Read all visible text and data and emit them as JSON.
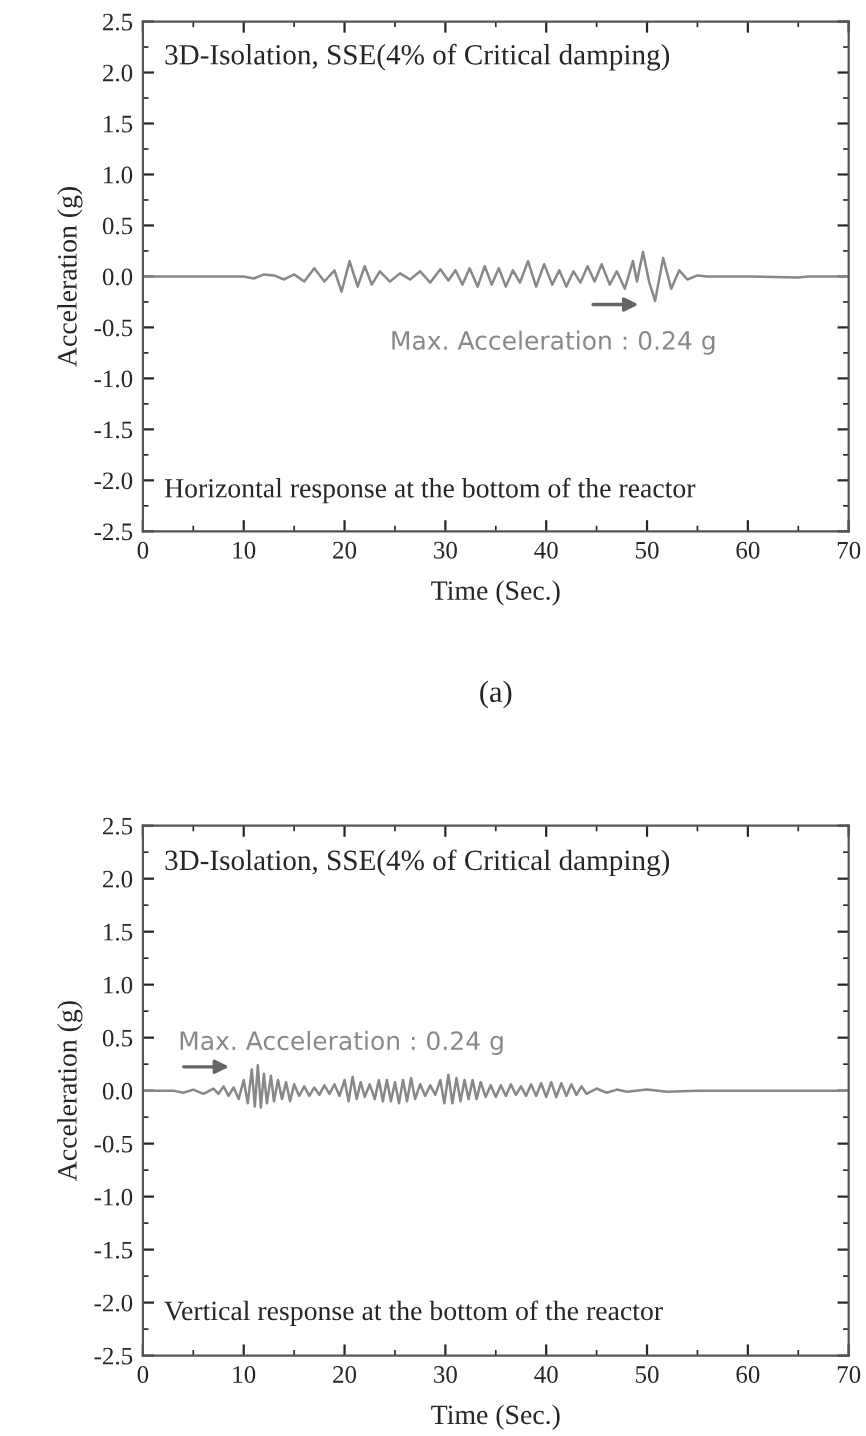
{
  "chart_data": [
    {
      "type": "line",
      "title": "3D-Isolation, SSE(4% of Critical damping)",
      "xlabel": "Time (Sec.)",
      "ylabel": "Acceleration (g)",
      "annotations": [
        "Max. Acceleration : 0.24 g",
        "Horizontal response at the bottom of the reactor",
        "(a)"
      ],
      "xlim": [
        0,
        70
      ],
      "ylim": [
        -2.5,
        2.5
      ],
      "xticks": [
        0,
        10,
        20,
        30,
        40,
        50,
        60,
        70
      ],
      "yticks": [
        {
          "value": -2.5,
          "label": "-2.5"
        },
        {
          "value": -2.0,
          "label": "-2.0"
        },
        {
          "value": -1.5,
          "label": "-1.5"
        },
        {
          "value": -1.0,
          "label": "-1.0"
        },
        {
          "value": -0.5,
          "label": "-0.5"
        },
        {
          "value": 0.0,
          "label": "0.0"
        },
        {
          "value": 0.5,
          "label": "0.5"
        },
        {
          "value": 1.0,
          "label": "1.0"
        },
        {
          "value": 1.5,
          "label": "1.5"
        },
        {
          "value": 2.0,
          "label": "2.0"
        },
        {
          "value": 2.5,
          "label": "2.5"
        }
      ],
      "marker": "none",
      "line_style": "solid",
      "series": [
        {
          "color": "#888888",
          "x": [
            0,
            5,
            10,
            11,
            12,
            13,
            14,
            15,
            16,
            17,
            18,
            19,
            19.7,
            20.5,
            21.3,
            22,
            22.7,
            23.5,
            24.5,
            25.5,
            26.5,
            27.5,
            28.5,
            29.5,
            30.3,
            31,
            31.7,
            32.4,
            33.2,
            33.9,
            34.6,
            35.3,
            36,
            36.7,
            37.4,
            38.2,
            39,
            39.8,
            40.6,
            41.3,
            42,
            42.7,
            43.4,
            44.1,
            44.8,
            45.5,
            46.3,
            47,
            47.8,
            48.6,
            49,
            49.6,
            50.2,
            50.8,
            51.6,
            52.4,
            53.2,
            54,
            55,
            56,
            58,
            60,
            65,
            66,
            70
          ],
          "values": [
            0,
            0,
            0,
            -0.02,
            0.02,
            0.01,
            -0.03,
            0.02,
            -0.05,
            0.08,
            -0.05,
            0.06,
            -0.15,
            0.15,
            -0.1,
            0.1,
            -0.08,
            0.05,
            -0.05,
            0.03,
            -0.03,
            0.05,
            -0.06,
            0.07,
            -0.04,
            0.06,
            -0.08,
            0.08,
            -0.1,
            0.1,
            -0.08,
            0.08,
            -0.1,
            0.06,
            -0.06,
            0.15,
            -0.1,
            0.12,
            -0.08,
            0.06,
            -0.1,
            0.05,
            -0.06,
            0.1,
            -0.05,
            0.12,
            -0.08,
            0.05,
            -0.12,
            0.15,
            -0.05,
            0.24,
            -0.05,
            -0.24,
            0.18,
            -0.12,
            0.06,
            -0.03,
            0.01,
            0,
            0,
            0,
            -0.01,
            0,
            0
          ]
        }
      ]
    },
    {
      "type": "line",
      "title": "3D-Isolation, SSE(4% of Critical damping)",
      "xlabel": "Time (Sec.)",
      "ylabel": "Acceleration (g)",
      "annotations": [
        "Max. Acceleration : 0.24 g",
        "Vertical response at the bottom of the reactor"
      ],
      "xlim": [
        0,
        70
      ],
      "ylim": [
        -2.5,
        2.5
      ],
      "xticks": [
        0,
        10,
        20,
        30,
        40,
        50,
        60,
        70
      ],
      "yticks": [
        {
          "value": -2.5,
          "label": "-2.5"
        },
        {
          "value": -2.0,
          "label": "-2.0"
        },
        {
          "value": -1.5,
          "label": "-1.5"
        },
        {
          "value": -1.0,
          "label": "-1.0"
        },
        {
          "value": -0.5,
          "label": "-0.5"
        },
        {
          "value": 0.0,
          "label": "0.0"
        },
        {
          "value": 0.5,
          "label": "0.5"
        },
        {
          "value": 1.0,
          "label": "1.0"
        },
        {
          "value": 1.5,
          "label": "1.5"
        },
        {
          "value": 2.0,
          "label": "2.0"
        },
        {
          "value": 2.5,
          "label": "2.5"
        }
      ],
      "marker": "none",
      "line_style": "solid",
      "series": [
        {
          "color": "#888888",
          "x": [
            0,
            3,
            4,
            5,
            6,
            7,
            7.5,
            8,
            8.5,
            9,
            9.5,
            10,
            10.4,
            10.8,
            11.1,
            11.4,
            11.7,
            12,
            12.3,
            12.7,
            13,
            13.4,
            13.8,
            14.2,
            14.6,
            15,
            15.5,
            16,
            16.5,
            17,
            17.5,
            18,
            18.5,
            19,
            19.5,
            20,
            20.4,
            20.8,
            21.2,
            21.6,
            22,
            22.5,
            23,
            23.4,
            23.8,
            24.2,
            24.6,
            25,
            25.4,
            25.8,
            26.2,
            26.6,
            27,
            27.5,
            28,
            28.5,
            29,
            29.5,
            29.9,
            30.3,
            30.7,
            31.1,
            31.5,
            31.9,
            32.3,
            32.7,
            33.1,
            33.5,
            34,
            34.5,
            35,
            35.5,
            36,
            36.5,
            37,
            37.5,
            38,
            38.5,
            39,
            39.5,
            40,
            40.5,
            41,
            41.5,
            42,
            42.5,
            43,
            43.5,
            44,
            45,
            46,
            47,
            48,
            50,
            52,
            55,
            60,
            65,
            70
          ],
          "values": [
            0,
            0,
            -0.02,
            0.01,
            -0.03,
            0.02,
            -0.03,
            0.04,
            -0.05,
            0.03,
            -0.08,
            0.1,
            -0.12,
            0.2,
            -0.15,
            0.24,
            -0.16,
            0.16,
            -0.12,
            0.14,
            -0.1,
            0.1,
            -0.08,
            0.08,
            -0.1,
            0.06,
            -0.05,
            0.04,
            -0.05,
            0.03,
            -0.04,
            0.05,
            -0.03,
            0.06,
            -0.05,
            0.1,
            -0.1,
            0.13,
            -0.08,
            0.08,
            -0.06,
            0.06,
            -0.08,
            0.1,
            -0.1,
            0.1,
            -0.1,
            0.08,
            -0.12,
            0.1,
            -0.1,
            0.12,
            -0.08,
            0.06,
            -0.05,
            0.05,
            -0.04,
            0.1,
            -0.12,
            0.15,
            -0.12,
            0.12,
            -0.1,
            0.1,
            -0.08,
            0.1,
            -0.08,
            0.08,
            -0.06,
            0.05,
            -0.06,
            0.05,
            -0.05,
            0.06,
            -0.04,
            0.04,
            -0.05,
            0.06,
            -0.05,
            0.07,
            -0.06,
            0.08,
            -0.06,
            0.07,
            -0.05,
            0.06,
            -0.04,
            0.04,
            -0.03,
            0.02,
            -0.02,
            0.01,
            -0.01,
            0.01,
            -0.01,
            0,
            0,
            0,
            0
          ]
        }
      ]
    }
  ]
}
